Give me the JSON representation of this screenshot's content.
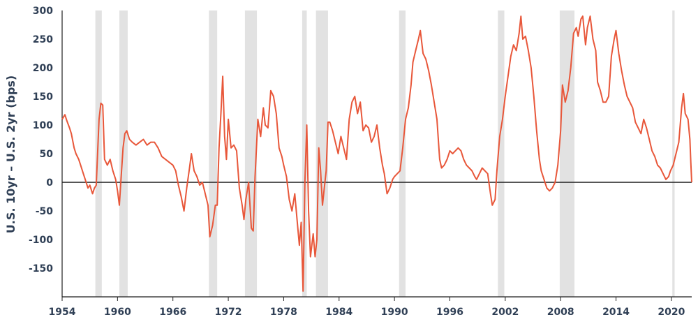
{
  "chart_data": {
    "type": "line",
    "title": "",
    "xlabel": "",
    "ylabel": "U.S. 10yr – U.S. 2yr (bps)",
    "xlim": [
      1954.0,
      2022.2
    ],
    "ylim": [
      -200,
      300
    ],
    "y_ticks": [
      300,
      250,
      200,
      150,
      100,
      50,
      0,
      -50,
      -100,
      -150
    ],
    "x_ticks": [
      1954,
      1960,
      1966,
      1972,
      1978,
      1984,
      1990,
      1996,
      2002,
      2008,
      2014,
      2020
    ],
    "grid": false,
    "legend": "none",
    "colors": {
      "line": "#e8573a",
      "recession": "#e2e2e2",
      "axis": "#1f1f1f",
      "text": "#2f3f55"
    },
    "recessions": [
      [
        1957.6,
        1958.3
      ],
      [
        1960.2,
        1961.1
      ],
      [
        1969.9,
        1970.8
      ],
      [
        1973.8,
        1975.1
      ],
      [
        1980.0,
        1980.5
      ],
      [
        1981.5,
        1982.8
      ],
      [
        1990.5,
        1991.2
      ],
      [
        2001.2,
        2001.9
      ],
      [
        2007.9,
        2009.5
      ],
      [
        2020.1,
        2020.35
      ]
    ],
    "series": [
      {
        "points": [
          [
            1954.0,
            110
          ],
          [
            1954.3,
            118
          ],
          [
            1954.5,
            108
          ],
          [
            1954.8,
            95
          ],
          [
            1955.0,
            85
          ],
          [
            1955.3,
            60
          ],
          [
            1955.5,
            50
          ],
          [
            1955.8,
            40
          ],
          [
            1956.0,
            30
          ],
          [
            1956.3,
            15
          ],
          [
            1956.5,
            5
          ],
          [
            1956.8,
            -10
          ],
          [
            1957.0,
            -5
          ],
          [
            1957.3,
            -20
          ],
          [
            1957.5,
            -10
          ],
          [
            1957.7,
            -5
          ],
          [
            1958.0,
            110
          ],
          [
            1958.2,
            138
          ],
          [
            1958.4,
            135
          ],
          [
            1958.6,
            40
          ],
          [
            1958.9,
            30
          ],
          [
            1959.2,
            40
          ],
          [
            1959.5,
            20
          ],
          [
            1959.8,
            5
          ],
          [
            1960.0,
            -15
          ],
          [
            1960.2,
            -40
          ],
          [
            1960.4,
            10
          ],
          [
            1960.6,
            60
          ],
          [
            1960.8,
            85
          ],
          [
            1961.0,
            90
          ],
          [
            1961.3,
            75
          ],
          [
            1961.6,
            70
          ],
          [
            1962.0,
            65
          ],
          [
            1962.4,
            70
          ],
          [
            1962.8,
            75
          ],
          [
            1963.2,
            65
          ],
          [
            1963.6,
            70
          ],
          [
            1964.0,
            70
          ],
          [
            1964.4,
            60
          ],
          [
            1964.8,
            45
          ],
          [
            1965.2,
            40
          ],
          [
            1965.6,
            35
          ],
          [
            1966.0,
            30
          ],
          [
            1966.3,
            20
          ],
          [
            1966.6,
            -5
          ],
          [
            1966.9,
            -25
          ],
          [
            1967.2,
            -50
          ],
          [
            1967.5,
            -10
          ],
          [
            1967.8,
            25
          ],
          [
            1968.0,
            50
          ],
          [
            1968.3,
            20
          ],
          [
            1968.6,
            10
          ],
          [
            1968.9,
            -5
          ],
          [
            1969.2,
            0
          ],
          [
            1969.5,
            -20
          ],
          [
            1969.8,
            -40
          ],
          [
            1970.0,
            -95
          ],
          [
            1970.3,
            -75
          ],
          [
            1970.6,
            -40
          ],
          [
            1970.8,
            -40
          ],
          [
            1971.0,
            60
          ],
          [
            1971.2,
            120
          ],
          [
            1971.4,
            185
          ],
          [
            1971.6,
            80
          ],
          [
            1971.8,
            40
          ],
          [
            1972.0,
            110
          ],
          [
            1972.3,
            60
          ],
          [
            1972.6,
            65
          ],
          [
            1972.9,
            55
          ],
          [
            1973.2,
            -10
          ],
          [
            1973.5,
            -40
          ],
          [
            1973.7,
            -65
          ],
          [
            1973.9,
            -30
          ],
          [
            1974.2,
            0
          ],
          [
            1974.5,
            -80
          ],
          [
            1974.7,
            -85
          ],
          [
            1974.9,
            10
          ],
          [
            1975.2,
            110
          ],
          [
            1975.5,
            80
          ],
          [
            1975.8,
            130
          ],
          [
            1976.0,
            100
          ],
          [
            1976.3,
            95
          ],
          [
            1976.6,
            160
          ],
          [
            1976.9,
            150
          ],
          [
            1977.2,
            120
          ],
          [
            1977.5,
            60
          ],
          [
            1977.8,
            45
          ],
          [
            1978.0,
            30
          ],
          [
            1978.3,
            10
          ],
          [
            1978.6,
            -30
          ],
          [
            1978.9,
            -50
          ],
          [
            1979.2,
            -20
          ],
          [
            1979.5,
            -75
          ],
          [
            1979.7,
            -110
          ],
          [
            1979.9,
            -70
          ],
          [
            1980.1,
            -190
          ],
          [
            1980.3,
            0
          ],
          [
            1980.5,
            100
          ],
          [
            1980.7,
            -50
          ],
          [
            1980.9,
            -130
          ],
          [
            1981.2,
            -90
          ],
          [
            1981.4,
            -130
          ],
          [
            1981.6,
            -100
          ],
          [
            1981.8,
            60
          ],
          [
            1982.0,
            20
          ],
          [
            1982.2,
            -40
          ],
          [
            1982.4,
            -10
          ],
          [
            1982.6,
            20
          ],
          [
            1982.8,
            105
          ],
          [
            1983.0,
            105
          ],
          [
            1983.3,
            90
          ],
          [
            1983.6,
            70
          ],
          [
            1983.9,
            50
          ],
          [
            1984.2,
            80
          ],
          [
            1984.5,
            60
          ],
          [
            1984.8,
            40
          ],
          [
            1985.1,
            110
          ],
          [
            1985.4,
            140
          ],
          [
            1985.7,
            150
          ],
          [
            1986.0,
            120
          ],
          [
            1986.3,
            140
          ],
          [
            1986.6,
            90
          ],
          [
            1986.9,
            100
          ],
          [
            1987.2,
            95
          ],
          [
            1987.5,
            70
          ],
          [
            1987.8,
            80
          ],
          [
            1988.1,
            100
          ],
          [
            1988.4,
            60
          ],
          [
            1988.7,
            30
          ],
          [
            1988.9,
            15
          ],
          [
            1989.2,
            -20
          ],
          [
            1989.5,
            -10
          ],
          [
            1989.8,
            5
          ],
          [
            1990.0,
            10
          ],
          [
            1990.3,
            15
          ],
          [
            1990.6,
            20
          ],
          [
            1990.9,
            60
          ],
          [
            1991.2,
            110
          ],
          [
            1991.5,
            130
          ],
          [
            1991.8,
            170
          ],
          [
            1992.0,
            210
          ],
          [
            1992.3,
            230
          ],
          [
            1992.6,
            250
          ],
          [
            1992.8,
            265
          ],
          [
            1993.1,
            225
          ],
          [
            1993.4,
            215
          ],
          [
            1993.7,
            195
          ],
          [
            1994.0,
            170
          ],
          [
            1994.3,
            140
          ],
          [
            1994.6,
            110
          ],
          [
            1994.9,
            40
          ],
          [
            1995.1,
            25
          ],
          [
            1995.4,
            30
          ],
          [
            1995.7,
            40
          ],
          [
            1996.0,
            55
          ],
          [
            1996.3,
            50
          ],
          [
            1996.6,
            55
          ],
          [
            1996.9,
            60
          ],
          [
            1997.2,
            55
          ],
          [
            1997.5,
            40
          ],
          [
            1997.8,
            30
          ],
          [
            1998.1,
            25
          ],
          [
            1998.4,
            20
          ],
          [
            1998.7,
            10
          ],
          [
            1998.9,
            5
          ],
          [
            1999.2,
            15
          ],
          [
            1999.5,
            25
          ],
          [
            1999.8,
            20
          ],
          [
            2000.1,
            15
          ],
          [
            2000.4,
            -20
          ],
          [
            2000.6,
            -40
          ],
          [
            2000.9,
            -30
          ],
          [
            2001.1,
            20
          ],
          [
            2001.4,
            80
          ],
          [
            2001.7,
            110
          ],
          [
            2002.0,
            150
          ],
          [
            2002.3,
            185
          ],
          [
            2002.6,
            220
          ],
          [
            2002.9,
            240
          ],
          [
            2003.2,
            230
          ],
          [
            2003.5,
            260
          ],
          [
            2003.7,
            290
          ],
          [
            2003.9,
            250
          ],
          [
            2004.2,
            255
          ],
          [
            2004.5,
            230
          ],
          [
            2004.8,
            200
          ],
          [
            2005.1,
            150
          ],
          [
            2005.4,
            90
          ],
          [
            2005.7,
            40
          ],
          [
            2005.9,
            20
          ],
          [
            2006.2,
            5
          ],
          [
            2006.5,
            -10
          ],
          [
            2006.8,
            -15
          ],
          [
            2007.1,
            -10
          ],
          [
            2007.4,
            0
          ],
          [
            2007.7,
            30
          ],
          [
            2008.0,
            90
          ],
          [
            2008.2,
            170
          ],
          [
            2008.5,
            140
          ],
          [
            2008.8,
            160
          ],
          [
            2009.1,
            200
          ],
          [
            2009.4,
            260
          ],
          [
            2009.7,
            270
          ],
          [
            2009.9,
            255
          ],
          [
            2010.2,
            285
          ],
          [
            2010.4,
            290
          ],
          [
            2010.7,
            240
          ],
          [
            2010.9,
            270
          ],
          [
            2011.2,
            290
          ],
          [
            2011.5,
            250
          ],
          [
            2011.8,
            230
          ],
          [
            2012.0,
            175
          ],
          [
            2012.3,
            160
          ],
          [
            2012.6,
            140
          ],
          [
            2012.9,
            140
          ],
          [
            2013.2,
            150
          ],
          [
            2013.5,
            220
          ],
          [
            2013.8,
            250
          ],
          [
            2014.0,
            265
          ],
          [
            2014.3,
            225
          ],
          [
            2014.6,
            195
          ],
          [
            2014.9,
            170
          ],
          [
            2015.2,
            150
          ],
          [
            2015.5,
            140
          ],
          [
            2015.8,
            130
          ],
          [
            2016.1,
            105
          ],
          [
            2016.4,
            95
          ],
          [
            2016.7,
            85
          ],
          [
            2017.0,
            110
          ],
          [
            2017.3,
            95
          ],
          [
            2017.6,
            75
          ],
          [
            2017.9,
            55
          ],
          [
            2018.2,
            45
          ],
          [
            2018.5,
            30
          ],
          [
            2018.8,
            25
          ],
          [
            2019.1,
            15
          ],
          [
            2019.4,
            5
          ],
          [
            2019.7,
            10
          ],
          [
            2019.9,
            20
          ],
          [
            2020.2,
            30
          ],
          [
            2020.5,
            50
          ],
          [
            2020.8,
            70
          ],
          [
            2021.1,
            130
          ],
          [
            2021.3,
            155
          ],
          [
            2021.5,
            120
          ],
          [
            2021.8,
            110
          ],
          [
            2022.0,
            75
          ],
          [
            2022.1,
            35
          ],
          [
            2022.2,
            0
          ]
        ]
      }
    ]
  }
}
